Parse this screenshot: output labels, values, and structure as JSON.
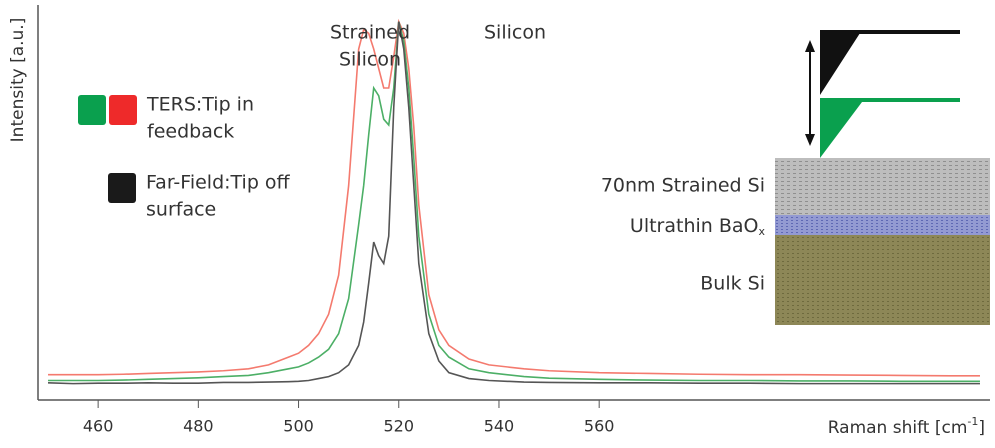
{
  "chart_data": {
    "type": "line",
    "ylabel": "Intensity [a.u.]",
    "xlabel": [
      "Raman shift [cm",
      "-1",
      "]"
    ],
    "xlim": [
      448,
      638
    ],
    "ylim": [
      0,
      100
    ],
    "xticks": [
      460,
      480,
      500,
      520,
      540,
      560
    ],
    "x": [
      450,
      455,
      460,
      465,
      470,
      475,
      480,
      485,
      490,
      494,
      498,
      500,
      502,
      504,
      506,
      508,
      510,
      512,
      513,
      514,
      515,
      516,
      517,
      518,
      519,
      520,
      521,
      522,
      523,
      524,
      526,
      528,
      530,
      534,
      538,
      545,
      550,
      560,
      570,
      580,
      590,
      600,
      610,
      620,
      630,
      636
    ],
    "series": [
      {
        "color": "#f47a6e",
        "values": [
          6.5,
          6.5,
          6.5,
          6.6,
          6.8,
          7,
          7.2,
          7.5,
          8,
          9,
          11,
          12,
          14,
          17,
          22,
          32,
          55,
          90,
          95,
          94,
          90,
          85,
          80,
          80,
          88,
          97,
          94,
          85,
          70,
          50,
          27,
          18,
          14,
          10.5,
          9,
          8,
          7.5,
          7,
          6.8,
          6.6,
          6.5,
          6.5,
          6.4,
          6.3,
          6.2,
          6.2
        ]
      },
      {
        "color": "#4caf66",
        "values": [
          5,
          5,
          5,
          5.1,
          5.3,
          5.5,
          5.7,
          6,
          6.3,
          7,
          8,
          8.5,
          9.5,
          11,
          13,
          17,
          26,
          45,
          55,
          68,
          80,
          78,
          72,
          70.5,
          80,
          97,
          92,
          80,
          62,
          42,
          22,
          14,
          11,
          8,
          7,
          6,
          5.6,
          5.3,
          5.1,
          5,
          5,
          4.9,
          4.9,
          4.8,
          4.8,
          4.8
        ]
      },
      {
        "color": "#555555",
        "values": [
          4.4,
          4.2,
          4.3,
          4.3,
          4.4,
          4.3,
          4.3,
          4.5,
          4.5,
          4.6,
          4.7,
          4.8,
          5,
          5.5,
          6,
          7,
          9,
          14,
          20,
          30,
          40.5,
          37,
          35,
          42,
          75,
          97,
          90,
          75,
          55,
          35,
          17,
          10,
          7,
          5.5,
          5,
          4.6,
          4.5,
          4.4,
          4.4,
          4.3,
          4.3,
          4.2,
          4.2,
          4.2,
          4.2,
          4.2
        ]
      }
    ],
    "annotations": [
      {
        "lines": [
          "Strained",
          "Silicon"
        ]
      },
      {
        "lines": [
          "Silicon"
        ]
      }
    ],
    "legend": [
      {
        "colors": [
          "#0aa04e",
          "#ee2a2a"
        ],
        "lines": [
          "TERS:Tip in",
          "feedback"
        ]
      },
      {
        "colors": [
          "#1a1a1a"
        ],
        "lines": [
          "Far-Field:Tip off",
          "surface"
        ]
      }
    ],
    "inset": {
      "layers": [
        "70nm Strained Si",
        {
          "text": "Ultrathin BaO",
          "sub": "x"
        },
        "Bulk Si"
      ]
    }
  }
}
